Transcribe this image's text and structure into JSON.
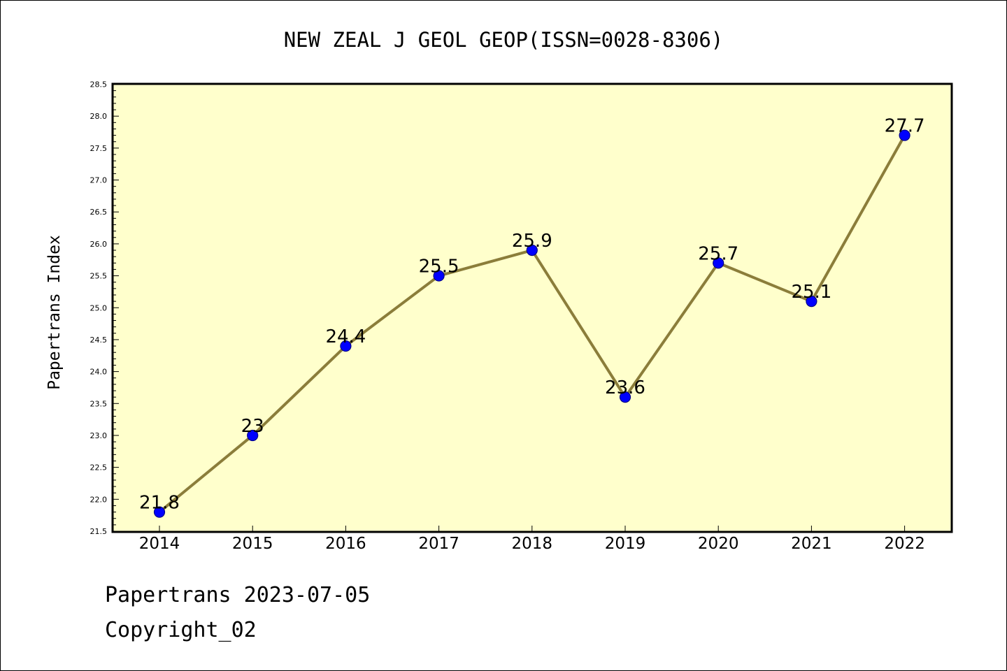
{
  "chart_data": {
    "type": "line",
    "title": "NEW ZEAL J GEOL GEOP(ISSN=0028-8306)",
    "xlabel": "",
    "ylabel": "Papertrans Index",
    "categories": [
      "2014",
      "2015",
      "2016",
      "2017",
      "2018",
      "2019",
      "2020",
      "2021",
      "2022"
    ],
    "series": [
      {
        "values": [
          21.8,
          23,
          24.4,
          25.5,
          25.9,
          23.6,
          25.7,
          25.1,
          27.7
        ],
        "data_labels": [
          "21.8",
          "23",
          "24.4",
          "25.5",
          "25.9",
          "23.6",
          "25.7",
          "25.1",
          "27.7"
        ]
      }
    ],
    "ylim": [
      21.5,
      28.5
    ],
    "yticks": [
      "21.5",
      "22.0",
      "22.5",
      "23.0",
      "23.5",
      "24.0",
      "24.5",
      "25.0",
      "25.5",
      "26.0",
      "26.5",
      "27.0",
      "27.5",
      "28.0",
      "28.5"
    ],
    "grid": false,
    "legend": "none",
    "colors": {
      "plot_background": "#ffffcc",
      "line": "#8b7d3a",
      "marker_fill": "#0000ff",
      "marker_edge": "#00008b",
      "axis": "#000000"
    }
  },
  "footer": {
    "line1": "Papertrans 2023-07-05",
    "line2": "Copyright_02"
  }
}
